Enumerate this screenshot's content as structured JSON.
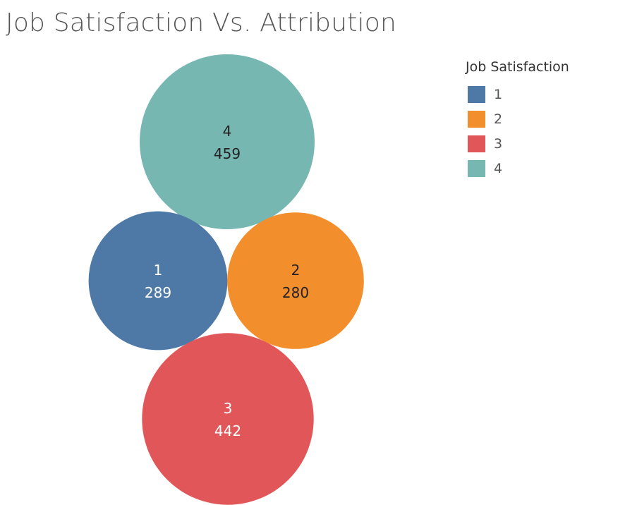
{
  "chart_data": {
    "type": "bubble",
    "title": "Job Satisfaction Vs. Attribution",
    "legend": {
      "title": "Job Satisfaction",
      "placement": "top-right",
      "entries": [
        {
          "label": "1",
          "color": "#4e79a7"
        },
        {
          "label": "2",
          "color": "#f28e2b"
        },
        {
          "label": "3",
          "color": "#e15759"
        },
        {
          "label": "4",
          "color": "#76b7b2"
        }
      ]
    },
    "bubbles": [
      {
        "category": "4",
        "value": 459,
        "color": "#76b7b2",
        "label_color": "#222222"
      },
      {
        "category": "1",
        "value": 289,
        "color": "#4e79a7",
        "label_color": "#ffffff"
      },
      {
        "category": "2",
        "value": 280,
        "color": "#f28e2b",
        "label_color": "#222222"
      },
      {
        "category": "3",
        "value": 442,
        "color": "#e15759",
        "label_color": "#ffffff"
      }
    ]
  }
}
